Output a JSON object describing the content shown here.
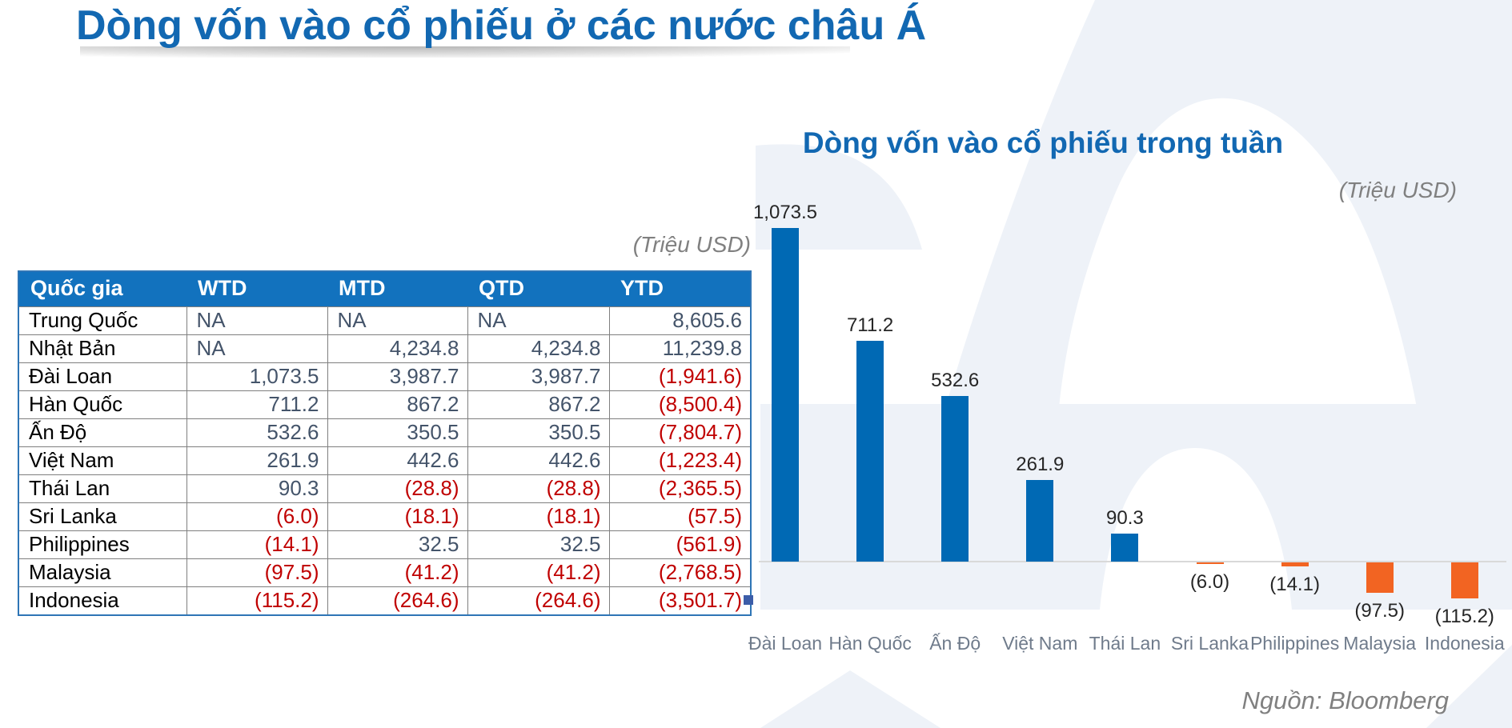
{
  "slide": {
    "title": "Dòng vốn vào cổ phiếu ở các nước châu Á",
    "source": "Nguồn: Bloomberg"
  },
  "table": {
    "unit_label": "(Triệu USD)",
    "columns": [
      "Quốc gia",
      "WTD",
      "MTD",
      "QTD",
      "YTD"
    ],
    "rows": [
      [
        "Trung Quốc",
        "NA",
        "NA",
        "NA",
        "8,605.6"
      ],
      [
        "Nhật Bản",
        "NA",
        "4,234.8",
        "4,234.8",
        "11,239.8"
      ],
      [
        "Đài Loan",
        "1,073.5",
        "3,987.7",
        "3,987.7",
        "(1,941.6)"
      ],
      [
        "Hàn Quốc",
        "711.2",
        "867.2",
        "867.2",
        "(8,500.4)"
      ],
      [
        "Ấn Độ",
        "532.6",
        "350.5",
        "350.5",
        "(7,804.7)"
      ],
      [
        "Việt Nam",
        "261.9",
        "442.6",
        "442.6",
        "(1,223.4)"
      ],
      [
        "Thái Lan",
        "90.3",
        "(28.8)",
        "(28.8)",
        "(2,365.5)"
      ],
      [
        "Sri Lanka",
        "(6.0)",
        "(18.1)",
        "(18.1)",
        "(57.5)"
      ],
      [
        "Philippines",
        "(14.1)",
        "32.5",
        "32.5",
        "(561.9)"
      ],
      [
        "Malaysia",
        "(97.5)",
        "(41.2)",
        "(41.2)",
        "(2,768.5)"
      ],
      [
        "Indonesia",
        "(115.2)",
        "(264.6)",
        "(264.6)",
        "(3,501.7)"
      ]
    ],
    "negative_color": "#C00000",
    "number_color": "#44546A",
    "header_color": "#1272BE"
  },
  "chart_data": {
    "type": "bar",
    "title": "Dòng vốn vào cổ phiếu trong tuần",
    "unit_label": "(Triệu USD)",
    "categories": [
      "Đài Loan",
      "Hàn Quốc",
      "Ấn Độ",
      "Việt Nam",
      "Thái Lan",
      "Sri Lanka",
      "Philippines",
      "Malaysia",
      "Indonesia"
    ],
    "values": [
      1073.5,
      711.2,
      532.6,
      261.9,
      90.3,
      -6.0,
      -14.1,
      -97.5,
      -115.2
    ],
    "data_labels": [
      "1,073.5",
      "711.2",
      "532.6",
      "261.9",
      "90.3",
      "(6.0)",
      "(14.1)",
      "(97.5)",
      "(115.2)"
    ],
    "xlabel": "",
    "ylabel": "",
    "ylim": [
      -150,
      1150
    ],
    "grid": false,
    "legend": false,
    "colors": {
      "positive": "#0069B4",
      "negative": "#F26422"
    },
    "source": "Nguồn: Bloomberg"
  }
}
